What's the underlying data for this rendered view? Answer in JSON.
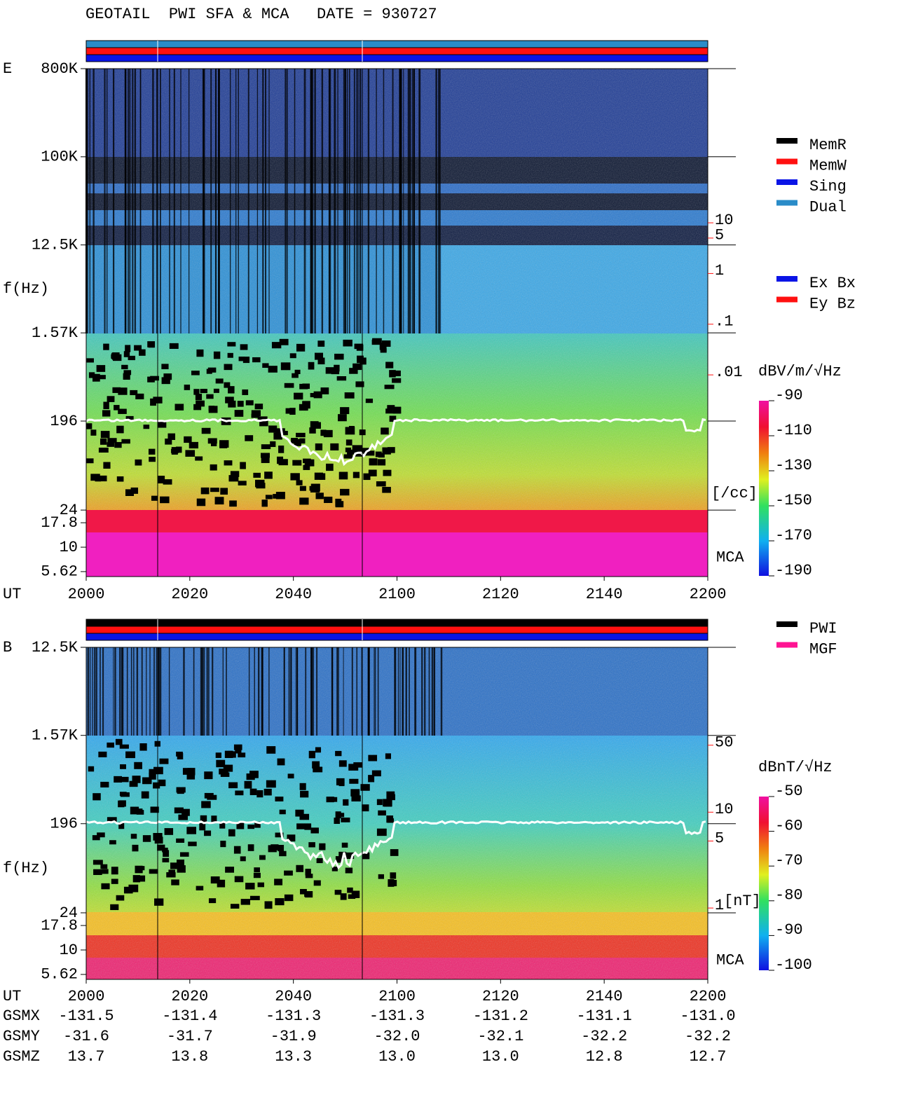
{
  "chart_data": [
    {
      "type": "spectrogram",
      "title": "GEOTAIL  PWI SFA & MCA   DATE = 930727",
      "panel_label": "E",
      "y_label": "f(Hz)",
      "x_label": "UT",
      "region_label": "MCA",
      "xlim": [
        1200,
        1320
      ],
      "xticks": [
        {
          "value": 1200,
          "label": "2000"
        },
        {
          "value": 1220,
          "label": "2020"
        },
        {
          "value": 1240,
          "label": "2040"
        },
        {
          "value": 1260,
          "label": "2100"
        },
        {
          "value": 1280,
          "label": "2120"
        },
        {
          "value": 1300,
          "label": "2140"
        },
        {
          "value": 1320,
          "label": "2200"
        }
      ],
      "log_y": true,
      "ylim": [
        5,
        800000
      ],
      "yticks": [
        {
          "value": 800000,
          "label": "800K"
        },
        {
          "value": 100000,
          "label": "100K"
        },
        {
          "value": 12500,
          "label": "12.5K"
        },
        {
          "value": 1570,
          "label": "1.57K"
        },
        196,
        24,
        17.8,
        10,
        5.62
      ],
      "y2_label": "[/cc]",
      "y2_color": "#ff1010",
      "y2lim": [
        1.05e-06,
        11000
      ],
      "y2ticks": [
        10,
        5,
        1,
        {
          "value": 0.1,
          "label": ".1"
        },
        {
          "value": 0.01,
          "label": ".01"
        }
      ],
      "colorbar": {
        "label": "dBV/m/√Hz",
        "lim": [
          -190,
          -90
        ],
        "ticks": [
          -90,
          -110,
          -130,
          -150,
          -170,
          -190
        ]
      },
      "legends": [
        [
          {
            "name": "MemR",
            "color": "#000000"
          },
          {
            "name": "MemW",
            "color": "#ff1010"
          },
          {
            "name": "Sing",
            "color": "#0a14e6"
          },
          {
            "name": "Dual",
            "color": "#2a8cc8"
          }
        ],
        [
          {
            "name": "Ex Bx",
            "color": "#0a14e6"
          },
          {
            "name": "Ey Bz",
            "color": "#ff1010"
          }
        ]
      ]
    },
    {
      "type": "spectrogram",
      "panel_label": "B",
      "y_label": "f(Hz)",
      "x_label": "UT",
      "region_label": "MCA",
      "xlim": [
        1200,
        1320
      ],
      "xticks": [
        {
          "value": 1200,
          "label": "2000"
        },
        {
          "value": 1220,
          "label": "2020"
        },
        {
          "value": 1240,
          "label": "2040"
        },
        {
          "value": 1260,
          "label": "2100"
        },
        {
          "value": 1280,
          "label": "2120"
        },
        {
          "value": 1300,
          "label": "2140"
        },
        {
          "value": 1320,
          "label": "2200"
        }
      ],
      "log_y": true,
      "ylim": [
        5,
        12500
      ],
      "yticks": [
        {
          "value": 12500,
          "label": "12.5K"
        },
        {
          "value": 1570,
          "label": "1.57K"
        },
        196,
        24,
        17.8,
        10,
        5.62
      ],
      "y2_label": "[nT]",
      "y2_color": "#ff1010",
      "y2lim": [
        0.18,
        525
      ],
      "y2ticks": [
        50,
        10,
        5,
        1
      ],
      "colorbar": {
        "label": "dBnT/√Hz",
        "lim": [
          -100,
          -50
        ],
        "ticks": [
          -50,
          -60,
          -70,
          -80,
          -90,
          -100
        ]
      },
      "legends": [
        [
          {
            "name": "PWI",
            "color": "#000000"
          },
          {
            "name": "MGF",
            "color": "#ff1493"
          }
        ]
      ]
    }
  ],
  "ephemeris": {
    "rows": [
      [
        "GSMX",
        "-131.5",
        "-131.4",
        "-131.3",
        "-131.3",
        "-131.2",
        "-131.1",
        "-131.0"
      ],
      [
        "GSMY",
        "-31.6",
        "-31.7",
        "-31.9",
        "-32.0",
        "-32.1",
        "-32.2",
        "-32.2"
      ],
      [
        "GSMZ",
        "13.7",
        "13.8",
        "13.3",
        "13.0",
        "13.0",
        "12.8",
        "12.7"
      ]
    ]
  }
}
